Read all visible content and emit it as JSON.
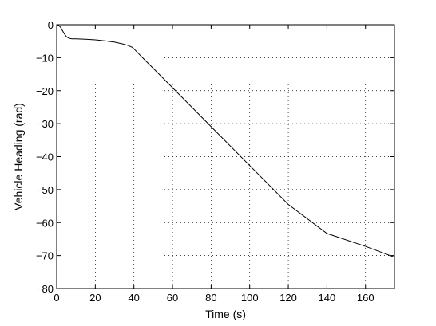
{
  "chart_data": {
    "type": "line",
    "title": "",
    "xlabel": "Time (s)",
    "ylabel": "Vehicle Heading (rad)",
    "xlim": [
      0,
      175
    ],
    "ylim": [
      -80,
      0
    ],
    "xticks": [
      0,
      20,
      40,
      60,
      80,
      100,
      120,
      140,
      160
    ],
    "yticks": [
      0,
      -10,
      -20,
      -30,
      -40,
      -50,
      -60,
      -70,
      -80
    ],
    "grid": true,
    "series": [
      {
        "color": "#000000",
        "x": [
          0,
          1,
          2,
          3,
          4,
          5,
          6,
          7,
          8,
          10,
          15,
          20,
          25,
          30,
          34,
          37,
          39,
          40,
          42,
          45,
          50,
          60,
          80,
          100,
          120,
          140,
          160,
          175
        ],
        "y": [
          0,
          -0.2,
          -0.8,
          -1.8,
          -2.8,
          -3.6,
          -4.0,
          -4.2,
          -4.3,
          -4.3,
          -4.4,
          -4.6,
          -4.9,
          -5.3,
          -5.8,
          -6.3,
          -6.8,
          -7.3,
          -8.5,
          -10.3,
          -13.2,
          -19.1,
          -30.9,
          -42.7,
          -54.5,
          -63.3,
          -67.2,
          -70.5
        ]
      }
    ]
  }
}
